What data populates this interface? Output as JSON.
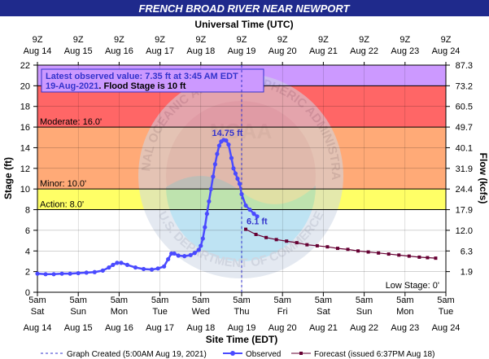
{
  "title": "FRENCH BROAD RIVER NEAR NEWPORT",
  "colors": {
    "title_bg": "#1f2a8c",
    "major": "#cc99ff",
    "moderate": "#ff6666",
    "minor": "#ffaa77",
    "action": "#ffff66",
    "observed": "#4a4aff",
    "forecast": "#660033",
    "marker_text": "#3333cc"
  },
  "chart_data": {
    "type": "line",
    "title": "FRENCH BROAD RIVER NEAR NEWPORT",
    "top_axis_label": "Universal Time (UTC)",
    "top_ticks": [
      {
        "time": "9Z",
        "date": "Aug 14"
      },
      {
        "time": "9Z",
        "date": "Aug 15"
      },
      {
        "time": "9Z",
        "date": "Aug 16"
      },
      {
        "time": "9Z",
        "date": "Aug 17"
      },
      {
        "time": "9Z",
        "date": "Aug 18"
      },
      {
        "time": "9Z",
        "date": "Aug 19"
      },
      {
        "time": "9Z",
        "date": "Aug 20"
      },
      {
        "time": "9Z",
        "date": "Aug 21"
      },
      {
        "time": "9Z",
        "date": "Aug 22"
      },
      {
        "time": "9Z",
        "date": "Aug 23"
      },
      {
        "time": "9Z",
        "date": "Aug 24"
      }
    ],
    "xlabel": "Site Time (EDT)",
    "bottom_ticks": [
      {
        "time": "5am",
        "day": "Sat",
        "date": "Aug 14"
      },
      {
        "time": "5am",
        "day": "Sun",
        "date": "Aug 15"
      },
      {
        "time": "5am",
        "day": "Mon",
        "date": "Aug 16"
      },
      {
        "time": "5am",
        "day": "Tue",
        "date": "Aug 17"
      },
      {
        "time": "5am",
        "day": "Wed",
        "date": "Aug 18"
      },
      {
        "time": "5am",
        "day": "Thu",
        "date": "Aug 19"
      },
      {
        "time": "5am",
        "day": "Fri",
        "date": "Aug 20"
      },
      {
        "time": "5am",
        "day": "Sat",
        "date": "Aug 21"
      },
      {
        "time": "5am",
        "day": "Sun",
        "date": "Aug 22"
      },
      {
        "time": "5am",
        "day": "Mon",
        "date": "Aug 23"
      },
      {
        "time": "5am",
        "day": "Tue",
        "date": "Aug 24"
      }
    ],
    "ylabel_left": "Stage (ft)",
    "ylabel_right": "Flow (kcfs)",
    "ylim": [
      0,
      22
    ],
    "xlim": [
      "Aug 14 5am",
      "Aug 24 5am"
    ],
    "y_ticks": [
      0,
      2,
      4,
      6,
      8,
      10,
      12,
      14,
      16,
      18,
      20,
      22
    ],
    "flow_ticks": [
      {
        "stage": 2.0,
        "label": "1.9"
      },
      {
        "stage": 4.0,
        "label": "6.3"
      },
      {
        "stage": 6.0,
        "label": "12.0"
      },
      {
        "stage": 8.0,
        "label": "17.9"
      },
      {
        "stage": 10.0,
        "label": "24.4"
      },
      {
        "stage": 12.0,
        "label": "31.9"
      },
      {
        "stage": 14.0,
        "label": "40.1"
      },
      {
        "stage": 16.0,
        "label": "49.7"
      },
      {
        "stage": 18.0,
        "label": "60.5"
      },
      {
        "stage": 20.0,
        "label": "73.2"
      },
      {
        "stage": 22.0,
        "label": "87.3"
      }
    ],
    "grid": true,
    "flood_categories": [
      {
        "name": "Major",
        "from": 20,
        "to": 22,
        "label": ""
      },
      {
        "name": "Moderate",
        "from": 16,
        "to": 20,
        "label": "Moderate:  16.0'"
      },
      {
        "name": "Minor",
        "from": 10,
        "to": 16,
        "label": "Minor:  10.0'"
      },
      {
        "name": "Action",
        "from": 8,
        "to": 10,
        "label": "Action:  8.0'"
      }
    ],
    "low_stage_label": "Low Stage:  0'",
    "info_box": {
      "line1": "Latest observed value: 7.35 ft at 3:45 AM EDT",
      "line2_date": "19-Aug-2021",
      "line2_rest": ".  Flood Stage is 10 ft"
    },
    "annotations": {
      "crest": {
        "text": "14.75 ft",
        "day": 4.85,
        "stage": 14.75
      },
      "forecast_start": {
        "text": "6.1 ft",
        "day": 5.1,
        "stage": 6.1
      }
    },
    "graph_created_day": 5.0,
    "series": [
      {
        "name": "Observed",
        "points": [
          [
            0.0,
            1.8
          ],
          [
            0.2,
            1.75
          ],
          [
            0.4,
            1.75
          ],
          [
            0.6,
            1.8
          ],
          [
            0.8,
            1.8
          ],
          [
            1.0,
            1.85
          ],
          [
            1.2,
            1.9
          ],
          [
            1.4,
            1.95
          ],
          [
            1.6,
            2.1
          ],
          [
            1.75,
            2.4
          ],
          [
            1.85,
            2.65
          ],
          [
            1.95,
            2.85
          ],
          [
            2.05,
            2.85
          ],
          [
            2.2,
            2.65
          ],
          [
            2.4,
            2.4
          ],
          [
            2.6,
            2.25
          ],
          [
            2.8,
            2.2
          ],
          [
            2.95,
            2.3
          ],
          [
            3.1,
            2.5
          ],
          [
            3.2,
            3.2
          ],
          [
            3.28,
            3.75
          ],
          [
            3.35,
            3.75
          ],
          [
            3.45,
            3.55
          ],
          [
            3.6,
            3.5
          ],
          [
            3.75,
            3.6
          ],
          [
            3.85,
            3.8
          ],
          [
            3.95,
            4.1
          ],
          [
            4.0,
            4.5
          ],
          [
            4.05,
            5.2
          ],
          [
            4.1,
            6.3
          ],
          [
            4.15,
            7.6
          ],
          [
            4.2,
            8.8
          ],
          [
            4.25,
            10.0
          ],
          [
            4.3,
            11.2
          ],
          [
            4.35,
            12.4
          ],
          [
            4.4,
            13.4
          ],
          [
            4.45,
            14.2
          ],
          [
            4.5,
            14.6
          ],
          [
            4.56,
            14.75
          ],
          [
            4.62,
            14.7
          ],
          [
            4.68,
            14.3
          ],
          [
            4.75,
            13.0
          ],
          [
            4.8,
            12.0
          ],
          [
            4.85,
            11.5
          ],
          [
            4.9,
            11.0
          ],
          [
            4.95,
            10.5
          ],
          [
            5.0,
            9.5
          ],
          [
            5.1,
            8.4
          ],
          [
            5.2,
            8.0
          ],
          [
            5.3,
            7.6
          ],
          [
            5.38,
            7.35
          ]
        ]
      },
      {
        "name": "Forecast (issued 6:37PM Aug 18)",
        "points": [
          [
            5.1,
            6.1
          ],
          [
            5.35,
            5.6
          ],
          [
            5.6,
            5.3
          ],
          [
            5.85,
            5.1
          ],
          [
            6.1,
            4.95
          ],
          [
            6.35,
            4.8
          ],
          [
            6.6,
            4.6
          ],
          [
            6.85,
            4.5
          ],
          [
            7.1,
            4.4
          ],
          [
            7.35,
            4.25
          ],
          [
            7.6,
            4.15
          ],
          [
            7.85,
            4.0
          ],
          [
            8.1,
            3.9
          ],
          [
            8.35,
            3.8
          ],
          [
            8.6,
            3.7
          ],
          [
            8.85,
            3.6
          ],
          [
            9.1,
            3.5
          ],
          [
            9.35,
            3.4
          ],
          [
            9.55,
            3.35
          ],
          [
            9.75,
            3.3
          ]
        ]
      }
    ]
  },
  "legend": {
    "graph_created": "Graph Created (5:00AM Aug 19, 2021)",
    "observed": "Observed",
    "forecast": "Forecast (issued 6:37PM Aug 18)"
  },
  "watermark": {
    "noaa": "NOAA",
    "ring_top": "NATIONAL OCEANIC AND ATMOSPHERIC ADMINISTRATION",
    "ring_bottom": "U.S. DEPARTMENT OF COMMERCE"
  }
}
